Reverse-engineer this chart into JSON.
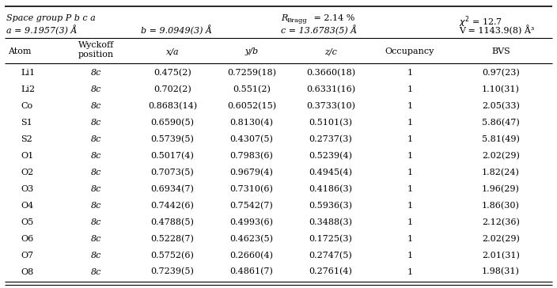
{
  "space_group": "Space group P b c a",
  "a_param": "a = 9.1957(3) Å",
  "b_param": "b = 9.0949(3) Å",
  "c_param": "c = 13.6783(5) Å",
  "chi2_str": "χ² = 12.7",
  "V_str": "V = 1143.9(8) Å³",
  "R_val": " = 2.14 %",
  "col_headers": [
    "Atom",
    "Wyckoff\nposition",
    "x/a",
    "y/b",
    "z/c",
    "Occupancy",
    "BVS"
  ],
  "rows": [
    [
      "Li1",
      "8c",
      "0.475(2)",
      "0.7259(18)",
      "0.3660(18)",
      "1",
      "0.97(23)"
    ],
    [
      "Li2",
      "8c",
      "0.702(2)",
      "0.551(2)",
      "0.6331(16)",
      "1",
      "1.10(31)"
    ],
    [
      "Co",
      "8c",
      "0.8683(14)",
      "0.6052(15)",
      "0.3733(10)",
      "1",
      "2.05(33)"
    ],
    [
      "S1",
      "8c",
      "0.6590(5)",
      "0.8130(4)",
      "0.5101(3)",
      "1",
      "5.86(47)"
    ],
    [
      "S2",
      "8c",
      "0.5739(5)",
      "0.4307(5)",
      "0.2737(3)",
      "1",
      "5.81(49)"
    ],
    [
      "O1",
      "8c",
      "0.5017(4)",
      "0.7983(6)",
      "0.5239(4)",
      "1",
      "2.02(29)"
    ],
    [
      "O2",
      "8c",
      "0.7073(5)",
      "0.9679(4)",
      "0.4945(4)",
      "1",
      "1.82(24)"
    ],
    [
      "O3",
      "8c",
      "0.6934(7)",
      "0.7310(6)",
      "0.4186(3)",
      "1",
      "1.96(29)"
    ],
    [
      "O4",
      "8c",
      "0.7442(6)",
      "0.7542(7)",
      "0.5936(3)",
      "1",
      "1.86(30)"
    ],
    [
      "O5",
      "8c",
      "0.4788(5)",
      "0.4993(6)",
      "0.3488(3)",
      "1",
      "2.12(36)"
    ],
    [
      "O6",
      "8c",
      "0.5228(7)",
      "0.4623(5)",
      "0.1725(3)",
      "1",
      "2.02(29)"
    ],
    [
      "O7",
      "8c",
      "0.5752(6)",
      "0.2660(4)",
      "0.2747(5)",
      "1",
      "2.01(31)"
    ],
    [
      "O8",
      "8c",
      "0.7239(5)",
      "0.4861(7)",
      "0.2761(4)",
      "1",
      "1.98(31)"
    ]
  ],
  "fontsize": 8.0,
  "fontsize_sub": 6.0
}
